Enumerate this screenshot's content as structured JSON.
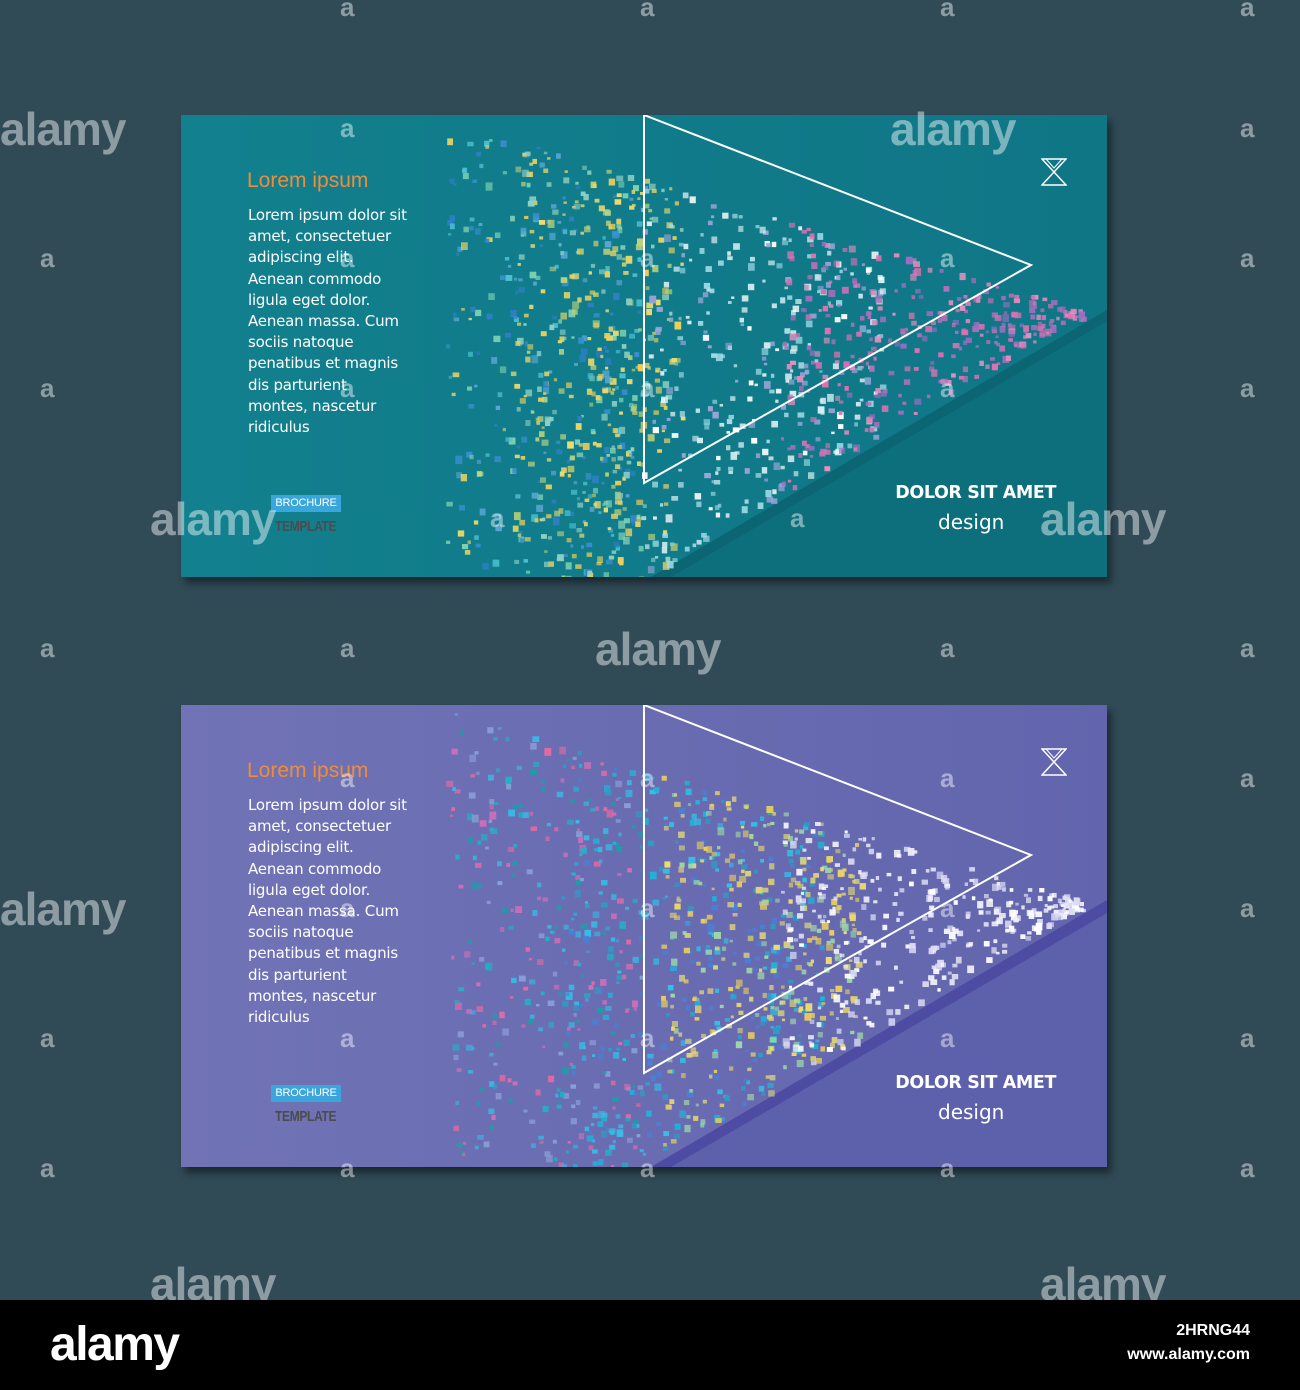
{
  "cards": [
    {
      "heading": "Lorem ipsum",
      "body": "Lorem ipsum dolor sit amet, consectetuer adipiscing elit. Aenean commodo ligula eget dolor. Aenean massa. Cum sociis natoque penatibus et magnis dis parturient montes, nascetur ridiculus",
      "badge": "BROCHURE",
      "sub": "TEMPLATE",
      "cta": "DOLOR SIT AMET",
      "cta_sub": "design",
      "colors": {
        "background": "#14828f",
        "fold": "#0d6f7d",
        "heading": "#ee8c3a",
        "badge": "#3aa6dc"
      }
    },
    {
      "heading": "Lorem ipsum",
      "body": "Lorem ipsum dolor sit amet, consectetuer adipiscing elit. Aenean commodo ligula eget dolor. Aenean massa. Cum sociis natoque penatibus et magnis dis parturient montes, nascetur ridiculus",
      "badge": "BROCHURE",
      "sub": "TEMPLATE",
      "cta": "DOLOR SIT AMET",
      "cta_sub": "design",
      "colors": {
        "background": "#6b6eb1",
        "fold": "#5556a5",
        "heading": "#ee8c3a",
        "badge": "#3aa6dc"
      }
    }
  ],
  "icons": [
    "hourglass-icon",
    "play-triangle-icon"
  ],
  "watermark": {
    "logo": "alamy",
    "image_id": "2HRNG44",
    "url": "www.alamy.com"
  }
}
